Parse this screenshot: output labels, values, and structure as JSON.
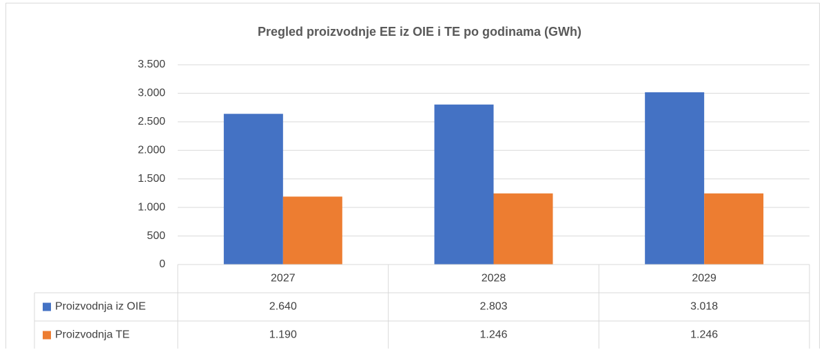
{
  "chart_data": {
    "type": "bar",
    "title": "Pregled proizvodnje EE iz OIE i TE po godinama  (GWh)",
    "categories": [
      "2027",
      "2028",
      "2029"
    ],
    "series": [
      {
        "name": "Proizvodnja iz OIE",
        "color": "#4472c4",
        "values": [
          2640,
          2803,
          3018
        ],
        "value_labels": [
          "2.640",
          "2.803",
          "3.018"
        ]
      },
      {
        "name": "Proizvodnja TE",
        "color": "#ed7d31",
        "values": [
          1190,
          1246,
          1246
        ],
        "value_labels": [
          "1.190",
          "1.246",
          "1.246"
        ]
      }
    ],
    "ylim": [
      0,
      3500
    ],
    "yticks": [
      0,
      500,
      {
        "value": 1000,
        "label": "1.000"
      },
      {
        "value": 1500,
        "label": "1.500"
      },
      {
        "value": 2000,
        "label": "2.000"
      },
      {
        "value": 2500,
        "label": "2.500"
      },
      {
        "value": 3000,
        "label": "3.000"
      },
      {
        "value": 3500,
        "label": "3.500"
      }
    ],
    "grid": true,
    "data_table": true
  }
}
